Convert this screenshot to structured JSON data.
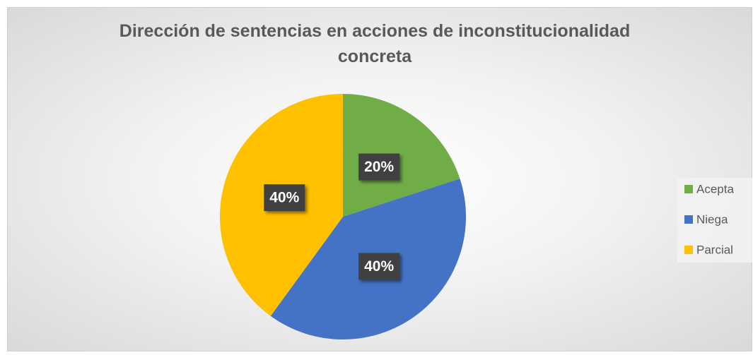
{
  "chart_data": {
    "type": "pie",
    "title": "Dirección de sentencias en acciones de inconstitucionalidad concreta",
    "categories": [
      "Acepta",
      "Niega",
      "Parcial"
    ],
    "values": [
      20,
      40,
      40
    ],
    "value_labels": [
      "20%",
      "40%",
      "40%"
    ],
    "colors": [
      "#70ad47",
      "#4472c4",
      "#ffc000"
    ],
    "legend": "right"
  }
}
